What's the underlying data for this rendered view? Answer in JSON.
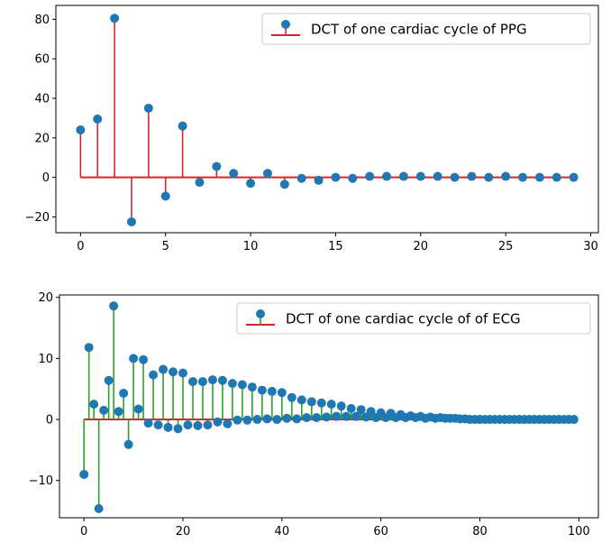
{
  "chart_data": [
    {
      "type": "stem",
      "legend": {
        "label": "DCT of one cardiac cycle of PPG",
        "loc": "upper right"
      },
      "colors": {
        "stem": "#d62728",
        "marker": "#1f77b4",
        "baseline": "#d62728"
      },
      "xlim": [
        -1.45,
        30.45
      ],
      "ylim": [
        -28,
        87
      ],
      "xticks": [
        0,
        5,
        10,
        15,
        20,
        25,
        30
      ],
      "yticks": [
        -20,
        0,
        20,
        40,
        60,
        80
      ],
      "grid": false,
      "x": [
        0,
        1,
        2,
        3,
        4,
        5,
        6,
        7,
        8,
        9,
        10,
        11,
        12,
        13,
        14,
        15,
        16,
        17,
        18,
        19,
        20,
        21,
        22,
        23,
        24,
        25,
        26,
        27,
        28,
        29
      ],
      "y": [
        24,
        29.5,
        80.5,
        -22.5,
        35,
        -9.5,
        26,
        -2.5,
        5.5,
        2,
        -3,
        2,
        -3.5,
        -0.5,
        -1.5,
        0,
        -0.5,
        0.5,
        0.5,
        0.5,
        0.5,
        0.5,
        0,
        0.5,
        0,
        0.5,
        0,
        0,
        0,
        0
      ]
    },
    {
      "type": "stem",
      "legend": {
        "label": "DCT of one cardiac cycle of of ECG",
        "loc": "upper right"
      },
      "colors": {
        "stem": "#2ca02c",
        "marker": "#1f77b4",
        "baseline": "#d62728"
      },
      "xlim": [
        -4.95,
        103.95
      ],
      "ylim": [
        -16.1,
        20.4
      ],
      "xticks": [
        0,
        20,
        40,
        60,
        80,
        100
      ],
      "yticks": [
        -10,
        0,
        10,
        20
      ],
      "grid": false,
      "x": [
        0,
        1,
        2,
        3,
        4,
        5,
        6,
        7,
        8,
        9,
        10,
        11,
        12,
        13,
        14,
        15,
        16,
        17,
        18,
        19,
        20,
        21,
        22,
        23,
        24,
        25,
        26,
        27,
        28,
        29,
        30,
        31,
        32,
        33,
        34,
        35,
        36,
        37,
        38,
        39,
        40,
        41,
        42,
        43,
        44,
        45,
        46,
        47,
        48,
        49,
        50,
        51,
        52,
        53,
        54,
        55,
        56,
        57,
        58,
        59,
        60,
        61,
        62,
        63,
        64,
        65,
        66,
        67,
        68,
        69,
        70,
        71,
        72,
        73,
        74,
        75,
        76,
        77,
        78,
        79,
        80,
        81,
        82,
        83,
        84,
        85,
        86,
        87,
        88,
        89,
        90,
        91,
        92,
        93,
        94,
        95,
        96,
        97,
        98,
        99
      ],
      "y": [
        -9,
        11.8,
        2.5,
        -14.6,
        1.5,
        6.4,
        18.6,
        1.3,
        4.3,
        -4.1,
        10,
        1.7,
        9.8,
        -0.6,
        7.3,
        -0.9,
        8.2,
        -1.3,
        7.8,
        -1.5,
        7.6,
        -0.9,
        6.2,
        -1,
        6.2,
        -0.9,
        6.5,
        -0.4,
        6.4,
        -0.7,
        5.9,
        -0.1,
        5.7,
        -0.1,
        5.3,
        0,
        4.8,
        0.1,
        4.6,
        0,
        4.4,
        0.2,
        3.6,
        0.1,
        3.2,
        0.3,
        2.9,
        0.3,
        2.7,
        0.4,
        2.5,
        0.5,
        2.2,
        0.5,
        1.8,
        0.5,
        1.6,
        0.4,
        1.3,
        0.3,
        1.1,
        0.3,
        1,
        0.3,
        0.8,
        0.3,
        0.6,
        0.3,
        0.5,
        0.2,
        0.4,
        0.2,
        0.3,
        0.2,
        0.2,
        0.2,
        0.1,
        0.1,
        0,
        0,
        0,
        0,
        0,
        0,
        0,
        0,
        0,
        0,
        0,
        0,
        0,
        0,
        0,
        0,
        0,
        0,
        0,
        0,
        0,
        0
      ]
    }
  ]
}
